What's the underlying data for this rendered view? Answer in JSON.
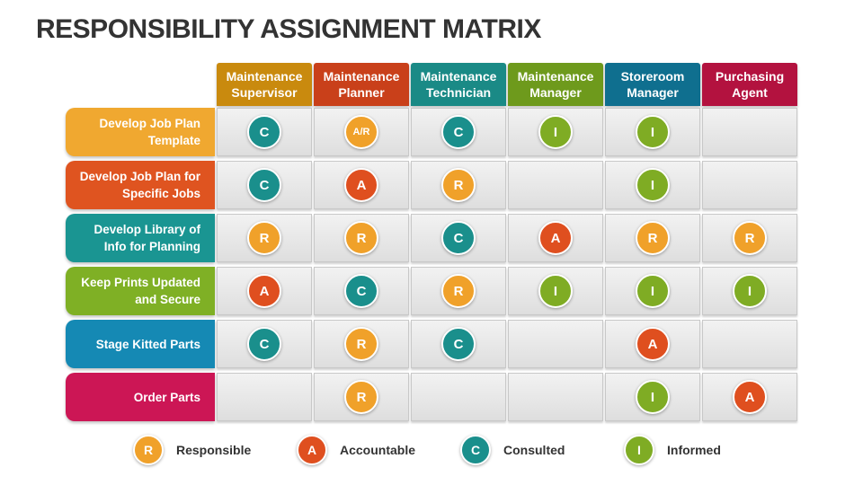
{
  "title": "RESPONSIBILITY ASSIGNMENT MATRIX",
  "colors": {
    "R": "#f0a12a",
    "A": "#df4f1f",
    "C": "#1a8f8c",
    "I": "#7fac24"
  },
  "columns": [
    {
      "label": "Maintenance Supervisor",
      "color": "#c98a0e"
    },
    {
      "label": "Maintenance Planner",
      "color": "#c9401a"
    },
    {
      "label": "Maintenance Technician",
      "color": "#1a8a86"
    },
    {
      "label": "Maintenance Manager",
      "color": "#6e9a1c"
    },
    {
      "label": "Storeroom Manager",
      "color": "#0f6f8f"
    },
    {
      "label": "Purchasing Agent",
      "color": "#b3123f"
    }
  ],
  "rows": [
    {
      "label": "Develop Job Plan Template",
      "color": "#f0a830",
      "cells": [
        "C",
        "A/R",
        "C",
        "I",
        "I",
        ""
      ]
    },
    {
      "label": "Develop Job Plan for Specific Jobs",
      "color": "#df5420",
      "cells": [
        "C",
        "A",
        "R",
        "",
        "I",
        ""
      ]
    },
    {
      "label": "Develop Library of Info for Planning",
      "color": "#1a9592",
      "cells": [
        "R",
        "R",
        "C",
        "A",
        "R",
        "R"
      ]
    },
    {
      "label": "Keep Prints Updated and Secure",
      "color": "#7fb025",
      "cells": [
        "A",
        "C",
        "R",
        "I",
        "I",
        "I"
      ]
    },
    {
      "label": "Stage Kitted Parts",
      "color": "#1589b4",
      "cells": [
        "C",
        "R",
        "C",
        "",
        "A",
        ""
      ]
    },
    {
      "label": "Order Parts",
      "color": "#cc1655",
      "cells": [
        "",
        "R",
        "",
        "",
        "I",
        "A"
      ]
    }
  ],
  "legend": [
    {
      "code": "R",
      "label": "Responsible"
    },
    {
      "code": "A",
      "label": "Accountable"
    },
    {
      "code": "C",
      "label": "Consulted"
    },
    {
      "code": "I",
      "label": "Informed"
    }
  ]
}
